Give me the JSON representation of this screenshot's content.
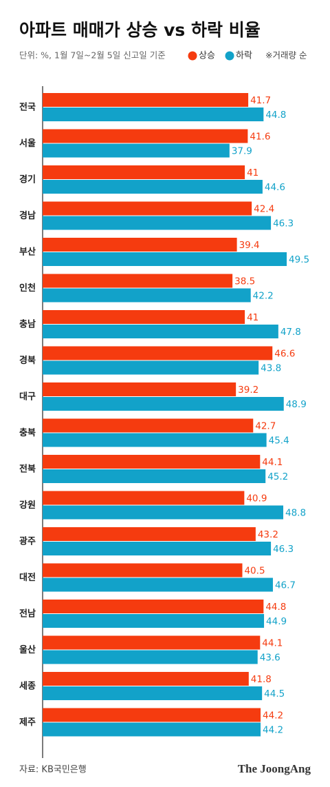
{
  "chart_data": {
    "type": "bar",
    "orientation": "horizontal",
    "title": "아파트 매매가 상승 vs 하락 비율",
    "subtitle": "단위: %, 1월 7일~2월 5일 신고일 기준",
    "note": "※거래량 순",
    "source": "자료: KB국민은행",
    "brand": "The JoongAng",
    "categories": [
      "전국",
      "서울",
      "경기",
      "경남",
      "부산",
      "인천",
      "충남",
      "경북",
      "대구",
      "충북",
      "전북",
      "강원",
      "광주",
      "대전",
      "전남",
      "울산",
      "세종",
      "제주"
    ],
    "series": [
      {
        "name": "상승",
        "color": "#f53b0f",
        "values": [
          41.7,
          41.6,
          41,
          42.4,
          39.4,
          38.5,
          41,
          46.6,
          39.2,
          42.7,
          44.1,
          40.9,
          43.2,
          40.5,
          44.8,
          44.1,
          41.8,
          44.2
        ]
      },
      {
        "name": "하락",
        "color": "#12a2c9",
        "values": [
          44.8,
          37.9,
          44.6,
          46.3,
          49.5,
          42.2,
          47.8,
          43.8,
          48.9,
          45.4,
          45.2,
          48.8,
          46.3,
          46.7,
          44.9,
          43.6,
          44.5,
          44.2
        ]
      }
    ],
    "xlim": [
      0,
      58
    ]
  }
}
